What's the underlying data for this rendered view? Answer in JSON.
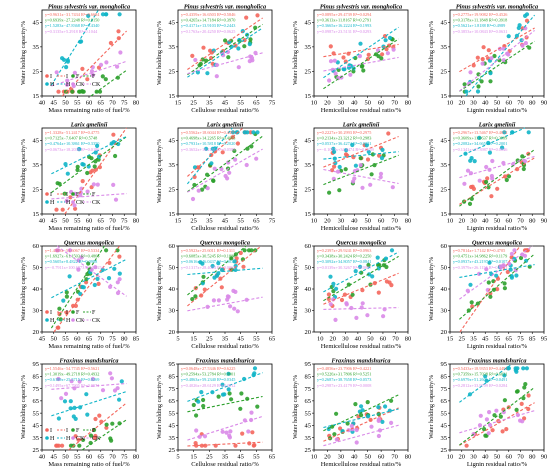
{
  "colors": {
    "I": "#f4665c",
    "F": "#2ca02c",
    "H": "#11b5c8",
    "CK": "#d98ae8"
  },
  "y_axis_label": "Water holding capacity/%",
  "x_axis_labels": [
    "Mass remaining ratio of fuel/%",
    "Cellulose residual ratio/%",
    "Hemicellulose residual ratio/%",
    "Lignin residual ratio/%"
  ],
  "legend_row_labels": [
    "I",
    "F",
    "H",
    "CK"
  ],
  "chart_data": [
    {
      "type": "scatter",
      "title": "Pinus sylvestris var. mongholica",
      "ylim": [
        15,
        50
      ],
      "yticks": [
        15,
        25,
        35,
        45
      ],
      "xlim": [
        40,
        80
      ],
      "xticks": [
        40,
        45,
        50,
        55,
        60,
        65,
        70,
        75,
        80
      ],
      "equations": [
        "y=0.9631x−31.7434 R²=0.6684",
        "y=0.6939x−27.2248 R²=0.6150",
        "y=1.5283x−47.8368 R²=0.4340",
        "y=0.3135x+5.2918 R²=0.1044"
      ],
      "legend": [
        "I",
        "F",
        "H",
        "CK"
      ]
    },
    {
      "type": "scatter",
      "title": "Pinus sylvestris var. mongholica",
      "ylim": [
        15,
        50
      ],
      "yticks": [
        15,
        25,
        35,
        45
      ],
      "xlim": [
        15,
        75
      ],
      "xticks": [
        15,
        25,
        35,
        45,
        55,
        65,
        75
      ],
      "equations": [
        "y=0.4359x+16.6503 R²=0.5846",
        "y=0.4265x+14.7184 R²=0.3970",
        "y=0.4171x+13.9103 R²=0.2443",
        "y=0.1763x+20.4250 R²=0.0625"
      ]
    },
    {
      "type": "scatter",
      "title": "Pinus sylvestris var. mongholica",
      "ylim": [
        15,
        50
      ],
      "yticks": [
        15,
        25,
        35,
        45
      ],
      "xlim": [
        10,
        80
      ],
      "xticks": [
        10,
        20,
        30,
        40,
        50,
        60,
        70,
        80
      ],
      "equations": [
        "y=0.0895x+29.4739 R²=0.0294",
        "y=0.3613x+11.8167 R²=0.2791",
        "y=0.3665x+16.2224 R²=0.1993",
        "y=0.0987x+23.5131 R²=0.0293"
      ]
    },
    {
      "type": "scatter",
      "title": "Pinus sylvestris var. mongholica",
      "ylim": [
        15,
        50
      ],
      "yticks": [
        15,
        25,
        35,
        45
      ],
      "xlim": [
        10,
        90
      ],
      "xticks": [
        10,
        20,
        30,
        40,
        50,
        60,
        70,
        80,
        90
      ],
      "equations": [
        "y=0.2775x+19.9082 R²=0.4526",
        "y=0.3178x+11.1848 R²=0.3918",
        "y=0.5621x+1.8188 R²=0.4989",
        "y=0.3853x+10.0843 R²=0.0631"
      ]
    },
    {
      "type": "scatter",
      "title": "Larix gmelinii",
      "ylim": [
        15,
        50
      ],
      "yticks": [
        15,
        25,
        35,
        45
      ],
      "xlim": [
        40,
        80
      ],
      "xticks": [
        40,
        45,
        50,
        55,
        60,
        65,
        70,
        75,
        80
      ],
      "equations": [
        "y=1.3328x−51.2417 R²=0.4775",
        "y=0.7125x−7.6407 R²=0.5748",
        "y=0.4764x+10.3861 R²=0.3350",
        "y=0.0673x+18.2036 R²=0.0186"
      ],
      "legend": [
        "I",
        "F",
        "H",
        "CK"
      ]
    },
    {
      "type": "scatter",
      "title": "Larix gmelinii",
      "ylim": [
        15,
        50
      ],
      "yticks": [
        15,
        25,
        35,
        45
      ],
      "xlim": [
        15,
        75
      ],
      "xticks": [
        15,
        25,
        35,
        45,
        55,
        65,
        75
      ],
      "equations": [
        "y=0.5562x+18.6044 R²=0.4457",
        "y=0.4698x+14.2265 R²=0.4063",
        "y=0.7931x+10.5818 R²=0.2020",
        "y=0.3652x+16.2131 R²=0.0588"
      ]
    },
    {
      "type": "scatter",
      "title": "Larix gmelinii",
      "ylim": [
        15,
        50
      ],
      "yticks": [
        15,
        25,
        35,
        45
      ],
      "xlim": [
        10,
        80
      ],
      "xticks": [
        10,
        20,
        30,
        40,
        50,
        60,
        70,
        80
      ],
      "equations": [
        "y=0.2227x+30.2993 R²=0.2975",
        "y=0.2134x+23.3212 R²=0.2983",
        "y=0.0537x+36.4274 R²=0.0031",
        "y=−0.1017x+34.8474 R²=0.0239"
      ]
    },
    {
      "type": "scatter",
      "title": "Larix gmelinii",
      "ylim": [
        15,
        50
      ],
      "yticks": [
        15,
        25,
        35,
        45
      ],
      "xlim": [
        10,
        90
      ],
      "xticks": [
        10,
        20,
        30,
        40,
        50,
        60,
        70,
        80,
        90
      ],
      "equations": [
        "y=0.2967x+13.5467 R²=0.4672",
        "y=0.3609x+11.6637 R²=0.3989",
        "y=0.2082x+34.6654 R²=0.2001",
        "y=0.1341x+27.3987 R²=0.0046"
      ]
    },
    {
      "type": "scatter",
      "title": "Quercus mongolica",
      "ylim": [
        20,
        60
      ],
      "yticks": [
        20,
        30,
        40,
        50,
        60
      ],
      "xlim": [
        45,
        85
      ],
      "xticks": [
        45,
        50,
        55,
        60,
        65,
        70,
        75,
        80,
        85
      ],
      "equations": [
        "y=1.4303x−51.6067 R²=0.5334",
        "y=1.6927x−61.1503 R²=0.4866",
        "y=0.5605x+8.4822 R²=0.0988",
        "y=−0.7911x+100.6973 R²=0.1254"
      ],
      "legend": [
        "I",
        "F",
        "H",
        "CK"
      ]
    },
    {
      "type": "scatter",
      "title": "Quercus mongolica",
      "ylim": [
        20,
        60
      ],
      "yticks": [
        20,
        30,
        40,
        50,
        60
      ],
      "xlim": [
        5,
        65
      ],
      "xticks": [
        5,
        15,
        25,
        35,
        45,
        55,
        65
      ],
      "equations": [
        "y=0.5923x+25.6011 R²=0.1311",
        "y=0.6085x+30.5245 R²=0.1880",
        "y=0.0616x+46.0437 R²=0.0030",
        "y=0.1317x+28.4024 R²=0.0062"
      ]
    },
    {
      "type": "scatter",
      "title": "Quercus mongolica",
      "ylim": [
        20,
        60
      ],
      "yticks": [
        20,
        30,
        40,
        50,
        60
      ],
      "xlim": [
        5,
        80
      ],
      "xticks": [
        10,
        20,
        30,
        40,
        50,
        60,
        70,
        80
      ],
      "equations": [
        "y=0.2397x+29.9241 R²=0.0963",
        "y=0.3438x+30.2424 R²=0.2250",
        "y=0.3092x+34.8057 R²=0.0841",
        "y=0.0139x+30.3267 R²=0.0007"
      ]
    },
    {
      "type": "scatter",
      "title": "Quercus mongolica",
      "ylim": [
        20,
        60
      ],
      "yticks": [
        20,
        30,
        40,
        50,
        60
      ],
      "xlim": [
        15,
        95
      ],
      "xticks": [
        15,
        25,
        35,
        45,
        55,
        65,
        75,
        85,
        95
      ],
      "equations": [
        "y=0.7814x+1.7142 R²=0.4705",
        "y=0.4751x+14.9862 R²=0.1179",
        "y=0.0937x+43.2197 R²=0.0107",
        "y=0.3979x+26.1155 R²=0.0033"
      ]
    },
    {
      "type": "scatter",
      "title": "Fraxinus mandshurica",
      "ylim": [
        25,
        95
      ],
      "yticks": [
        25,
        35,
        45,
        55,
        65,
        75,
        85,
        95
      ],
      "xlim": [
        40,
        80
      ],
      "xticks": [
        40,
        45,
        50,
        55,
        60,
        65,
        70,
        75,
        80
      ],
      "equations": [
        "y=1.5546x−54.7745 R²=0.5621",
        "y=1.3019x−49.2718 R²=0.4932",
        "y=0.6189x+25.5715 R²=0.0269",
        "y=0.1495x+67.7905 R²=0.0571"
      ],
      "legend": [
        "I",
        "F",
        "H",
        "CK"
      ]
    },
    {
      "type": "scatter",
      "title": "Fraxinus mandshurica",
      "ylim": [
        25,
        95
      ],
      "yticks": [
        25,
        35,
        45,
        55,
        65,
        75,
        85,
        95
      ],
      "xlim": [
        5,
        65
      ],
      "xticks": [
        5,
        15,
        25,
        35,
        45,
        55,
        65
      ],
      "equations": [
        "y=0.0648x+27.5346 R²=0.6225",
        "y=0.2594x+53.2784 R²=0.0801",
        "y=0.4863x+59.2340 R²=0.0345",
        "y=0.4026x+28.6129 R²=0.2012"
      ]
    },
    {
      "type": "scatter",
      "title": "Fraxinus mandshurica",
      "ylim": [
        25,
        95
      ],
      "yticks": [
        25,
        35,
        45,
        55,
        65,
        75,
        85,
        95
      ],
      "xlim": [
        10,
        80
      ],
      "xticks": [
        10,
        20,
        30,
        40,
        50,
        60,
        70,
        80
      ],
      "equations": [
        "y=0.4856x+23.7906 R²=0.4221",
        "y=0.5226x+31.7806 R²=0.5251",
        "y=0.2687x+38.7658 R²=0.0573",
        "y=0.2987x+23.4179 R²=0.0008"
      ]
    },
    {
      "type": "scatter",
      "title": "Fraxinus mandshurica",
      "ylim": [
        25,
        95
      ],
      "yticks": [
        25,
        35,
        45,
        55,
        65,
        75,
        85,
        95
      ],
      "xlim": [
        10,
        90
      ],
      "xticks": [
        10,
        20,
        30,
        40,
        50,
        60,
        70,
        80,
        90
      ],
      "equations": [
        "y=0.5433x+18.9353 R²=0.4491",
        "y=0.7359x+15.7038 R²=0.6031",
        "y=0.6979x+51.2601 R²=0.0491",
        "y=0.2812x+33.9709 R²=0.0284"
      ]
    }
  ]
}
